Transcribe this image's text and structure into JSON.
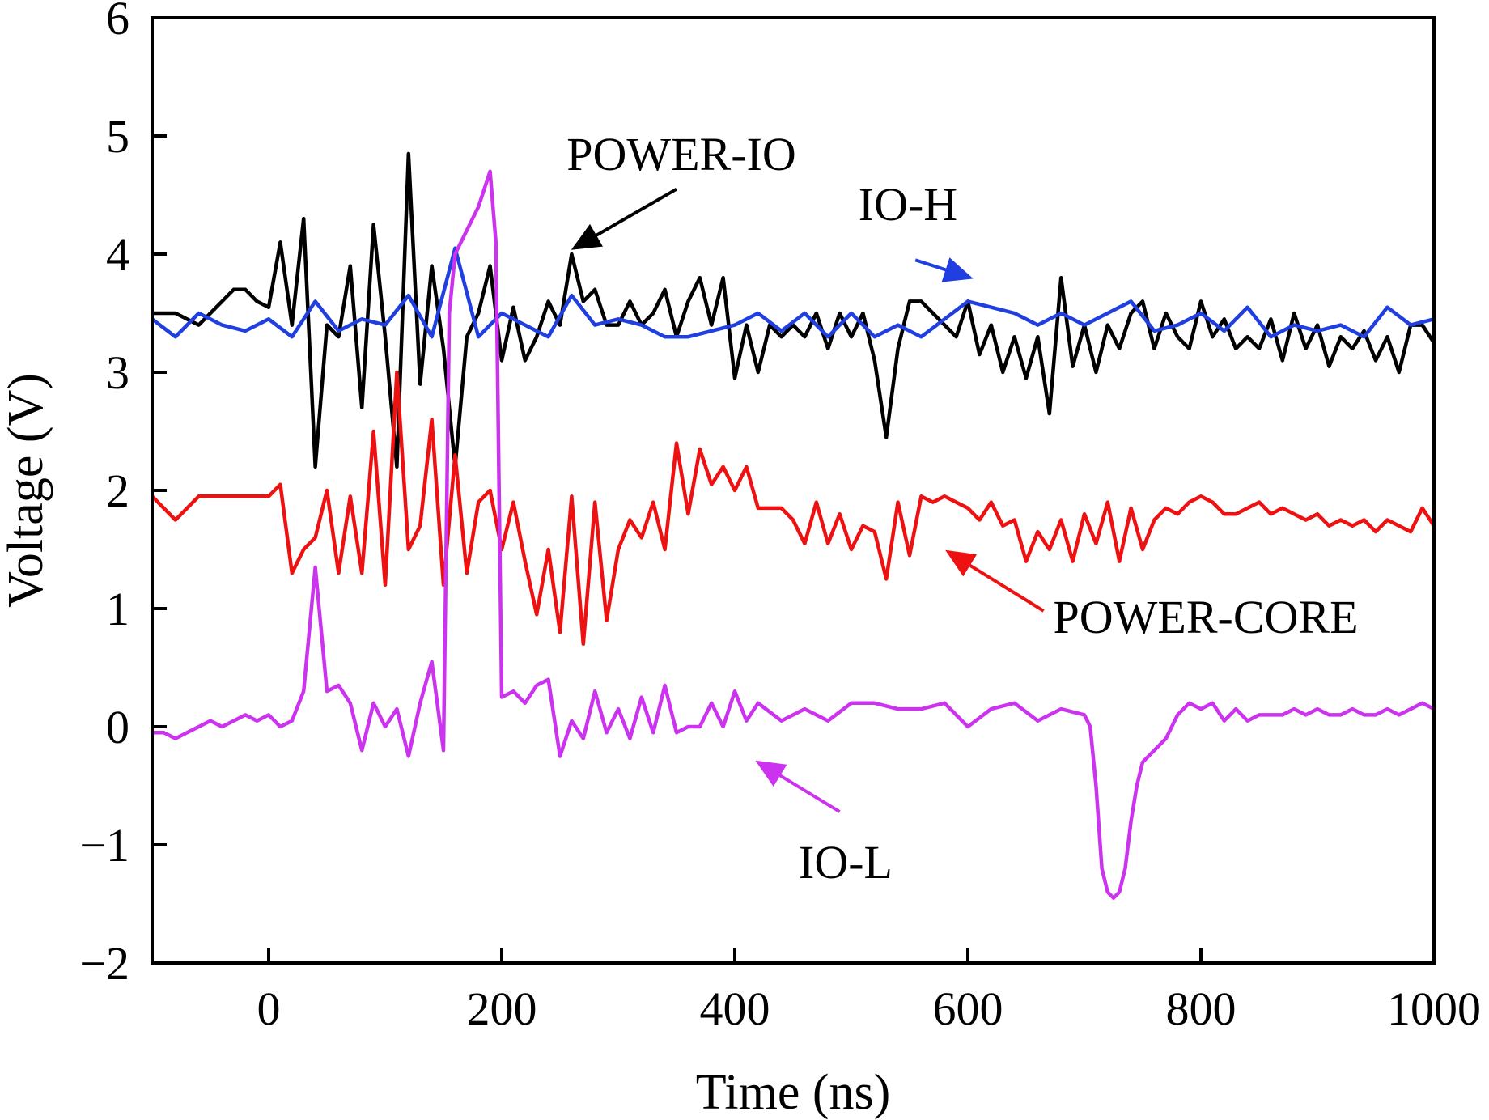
{
  "chart_data": {
    "type": "line",
    "title": "",
    "xlabel": "Time (ns)",
    "ylabel": "Voltage (V)",
    "xlim": [
      -100,
      1000
    ],
    "ylim": [
      -2,
      6
    ],
    "x_ticks": [
      "0",
      "200",
      "400",
      "600",
      "800",
      "1000"
    ],
    "x_tick_values": [
      0,
      200,
      400,
      600,
      800,
      1000
    ],
    "y_ticks": [
      "−2",
      "−1",
      "0",
      "1",
      "2",
      "3",
      "4",
      "5",
      "6"
    ],
    "y_tick_values": [
      -2,
      -1,
      0,
      1,
      2,
      3,
      4,
      5,
      6
    ],
    "grid": false,
    "legend": "none",
    "series": [
      {
        "name": "POWER-IO",
        "color": "#000000",
        "x": [
          -100,
          -80,
          -60,
          -50,
          -40,
          -30,
          -20,
          -10,
          0,
          10,
          20,
          30,
          40,
          50,
          60,
          70,
          80,
          90,
          100,
          110,
          120,
          130,
          140,
          150,
          160,
          170,
          180,
          190,
          200,
          210,
          220,
          230,
          240,
          250,
          260,
          270,
          280,
          290,
          300,
          310,
          320,
          330,
          340,
          350,
          360,
          370,
          380,
          390,
          400,
          410,
          420,
          430,
          440,
          450,
          460,
          470,
          480,
          490,
          500,
          510,
          520,
          530,
          540,
          550,
          560,
          570,
          580,
          590,
          600,
          610,
          620,
          630,
          640,
          650,
          660,
          670,
          680,
          690,
          700,
          710,
          720,
          730,
          740,
          750,
          760,
          770,
          780,
          790,
          800,
          810,
          820,
          830,
          840,
          850,
          860,
          870,
          880,
          890,
          900,
          910,
          920,
          930,
          940,
          950,
          960,
          970,
          980,
          990,
          1000
        ],
        "y": [
          3.5,
          3.5,
          3.4,
          3.5,
          3.6,
          3.7,
          3.7,
          3.6,
          3.55,
          4.1,
          3.4,
          4.3,
          2.2,
          3.4,
          3.3,
          3.9,
          2.7,
          4.25,
          3.3,
          2.2,
          4.85,
          2.9,
          3.9,
          3.2,
          2.2,
          3.3,
          3.5,
          3.9,
          3.1,
          3.55,
          3.1,
          3.3,
          3.6,
          3.4,
          4.0,
          3.6,
          3.7,
          3.4,
          3.4,
          3.6,
          3.4,
          3.5,
          3.7,
          3.3,
          3.6,
          3.8,
          3.4,
          3.8,
          2.95,
          3.4,
          3.0,
          3.4,
          3.3,
          3.4,
          3.3,
          3.5,
          3.2,
          3.5,
          3.3,
          3.5,
          3.1,
          2.45,
          3.2,
          3.6,
          3.6,
          3.5,
          3.4,
          3.3,
          3.6,
          3.15,
          3.4,
          3.0,
          3.3,
          2.95,
          3.3,
          2.65,
          3.8,
          3.05,
          3.4,
          3.0,
          3.4,
          3.2,
          3.5,
          3.6,
          3.2,
          3.5,
          3.3,
          3.2,
          3.6,
          3.3,
          3.45,
          3.2,
          3.3,
          3.2,
          3.45,
          3.1,
          3.5,
          3.2,
          3.4,
          3.05,
          3.3,
          3.2,
          3.35,
          3.1,
          3.3,
          3.0,
          3.4,
          3.4,
          3.25
        ]
      },
      {
        "name": "IO-H",
        "color": "#1f3fe0",
        "x": [
          -100,
          -80,
          -60,
          -40,
          -20,
          0,
          20,
          40,
          60,
          80,
          100,
          120,
          140,
          160,
          180,
          200,
          220,
          240,
          260,
          280,
          300,
          320,
          340,
          360,
          380,
          400,
          420,
          440,
          460,
          480,
          500,
          520,
          540,
          560,
          580,
          600,
          620,
          640,
          660,
          680,
          700,
          720,
          740,
          760,
          780,
          800,
          820,
          840,
          860,
          880,
          900,
          920,
          940,
          960,
          980,
          1000
        ],
        "y": [
          3.45,
          3.3,
          3.5,
          3.4,
          3.35,
          3.45,
          3.3,
          3.6,
          3.35,
          3.45,
          3.4,
          3.65,
          3.3,
          4.05,
          3.3,
          3.5,
          3.4,
          3.3,
          3.65,
          3.4,
          3.45,
          3.4,
          3.3,
          3.3,
          3.35,
          3.4,
          3.5,
          3.35,
          3.5,
          3.3,
          3.5,
          3.3,
          3.4,
          3.3,
          3.45,
          3.6,
          3.55,
          3.5,
          3.4,
          3.5,
          3.4,
          3.5,
          3.6,
          3.35,
          3.4,
          3.5,
          3.35,
          3.55,
          3.3,
          3.4,
          3.35,
          3.4,
          3.3,
          3.55,
          3.4,
          3.45
        ]
      },
      {
        "name": "POWER-CORE",
        "color": "#ee1111",
        "x": [
          -100,
          -80,
          -60,
          -40,
          -20,
          0,
          10,
          20,
          30,
          40,
          50,
          60,
          70,
          80,
          90,
          100,
          110,
          120,
          130,
          140,
          150,
          160,
          170,
          180,
          190,
          200,
          210,
          220,
          230,
          240,
          250,
          260,
          270,
          280,
          290,
          300,
          310,
          320,
          330,
          340,
          350,
          360,
          370,
          380,
          390,
          400,
          410,
          420,
          430,
          440,
          450,
          460,
          470,
          480,
          490,
          500,
          510,
          520,
          530,
          540,
          550,
          560,
          570,
          580,
          590,
          600,
          610,
          620,
          630,
          640,
          650,
          660,
          670,
          680,
          690,
          700,
          710,
          720,
          730,
          740,
          750,
          760,
          770,
          780,
          790,
          800,
          810,
          820,
          830,
          840,
          850,
          860,
          870,
          880,
          890,
          900,
          910,
          920,
          930,
          940,
          950,
          960,
          970,
          980,
          990,
          1000
        ],
        "y": [
          1.95,
          1.75,
          1.95,
          1.95,
          1.95,
          1.95,
          2.05,
          1.3,
          1.5,
          1.6,
          2.0,
          1.3,
          1.95,
          1.3,
          2.5,
          1.2,
          3.0,
          1.5,
          1.7,
          2.6,
          1.2,
          2.3,
          1.3,
          1.9,
          2.0,
          1.5,
          1.9,
          1.4,
          0.95,
          1.5,
          0.8,
          1.95,
          0.7,
          1.9,
          0.9,
          1.5,
          1.75,
          1.6,
          1.9,
          1.5,
          2.4,
          1.8,
          2.35,
          2.05,
          2.2,
          2.0,
          2.2,
          1.85,
          1.85,
          1.85,
          1.75,
          1.55,
          1.9,
          1.55,
          1.8,
          1.5,
          1.7,
          1.65,
          1.25,
          1.9,
          1.45,
          1.95,
          1.9,
          1.95,
          1.9,
          1.85,
          1.75,
          1.9,
          1.7,
          1.75,
          1.4,
          1.65,
          1.5,
          1.75,
          1.4,
          1.8,
          1.55,
          1.9,
          1.4,
          1.85,
          1.5,
          1.75,
          1.85,
          1.8,
          1.9,
          1.95,
          1.9,
          1.8,
          1.8,
          1.85,
          1.9,
          1.8,
          1.85,
          1.8,
          1.75,
          1.8,
          1.7,
          1.75,
          1.7,
          1.75,
          1.65,
          1.75,
          1.7,
          1.65,
          1.85,
          1.7
        ]
      },
      {
        "name": "IO-L",
        "color": "#cc33ee",
        "x": [
          -100,
          -90,
          -80,
          -70,
          -60,
          -50,
          -40,
          -30,
          -20,
          -10,
          0,
          10,
          20,
          30,
          40,
          50,
          60,
          70,
          80,
          90,
          100,
          110,
          120,
          130,
          140,
          150,
          155,
          160,
          170,
          180,
          190,
          195,
          200,
          210,
          220,
          230,
          240,
          250,
          260,
          270,
          280,
          290,
          300,
          310,
          320,
          330,
          340,
          350,
          360,
          370,
          380,
          390,
          400,
          410,
          420,
          440,
          460,
          480,
          500,
          520,
          540,
          560,
          580,
          600,
          620,
          640,
          660,
          680,
          700,
          705,
          710,
          715,
          720,
          725,
          730,
          735,
          740,
          745,
          750,
          760,
          770,
          780,
          790,
          800,
          810,
          820,
          830,
          840,
          850,
          860,
          870,
          880,
          890,
          900,
          910,
          920,
          930,
          940,
          950,
          960,
          970,
          980,
          990,
          1000
        ],
        "y": [
          -0.05,
          -0.05,
          -0.1,
          -0.05,
          0.0,
          0.05,
          0.0,
          0.05,
          0.1,
          0.05,
          0.1,
          0.0,
          0.05,
          0.3,
          1.35,
          0.3,
          0.35,
          0.2,
          -0.2,
          0.2,
          0.0,
          0.15,
          -0.25,
          0.2,
          0.55,
          -0.2,
          3.5,
          4.0,
          4.2,
          4.4,
          4.7,
          4.1,
          0.25,
          0.3,
          0.2,
          0.35,
          0.4,
          -0.25,
          0.05,
          -0.1,
          0.3,
          -0.05,
          0.15,
          -0.1,
          0.25,
          -0.05,
          0.35,
          -0.05,
          0.0,
          0.0,
          0.2,
          0.0,
          0.3,
          0.05,
          0.2,
          0.05,
          0.15,
          0.05,
          0.2,
          0.2,
          0.15,
          0.15,
          0.2,
          0.0,
          0.15,
          0.2,
          0.05,
          0.15,
          0.1,
          0.0,
          -0.5,
          -1.2,
          -1.4,
          -1.45,
          -1.4,
          -1.2,
          -0.8,
          -0.5,
          -0.3,
          -0.2,
          -0.1,
          0.1,
          0.2,
          0.15,
          0.2,
          0.05,
          0.15,
          0.05,
          0.1,
          0.1,
          0.1,
          0.15,
          0.1,
          0.15,
          0.1,
          0.1,
          0.15,
          0.1,
          0.1,
          0.15,
          0.1,
          0.15,
          0.2,
          0.15
        ]
      }
    ],
    "annotations": [
      {
        "label": "POWER-IO",
        "target_series": "POWER-IO",
        "arrow_color": "#000000",
        "arrow_tail": [
          350,
          4.55
        ],
        "arrow_head": [
          262,
          4.05
        ]
      },
      {
        "label": "IO-H",
        "target_series": "IO-H",
        "arrow_color": "#1f3fe0",
        "arrow_tail": [
          555,
          3.95
        ],
        "arrow_head": [
          602,
          3.8
        ]
      },
      {
        "label": "POWER-CORE",
        "target_series": "POWER-CORE",
        "arrow_color": "#ee1111",
        "arrow_tail": [
          665,
          0.98
        ],
        "arrow_head": [
          583,
          1.48
        ]
      },
      {
        "label": "IO-L",
        "target_series": "IO-L",
        "arrow_color": "#cc33ee",
        "arrow_tail": [
          490,
          -0.72
        ],
        "arrow_head": [
          420,
          -0.3
        ]
      }
    ]
  }
}
